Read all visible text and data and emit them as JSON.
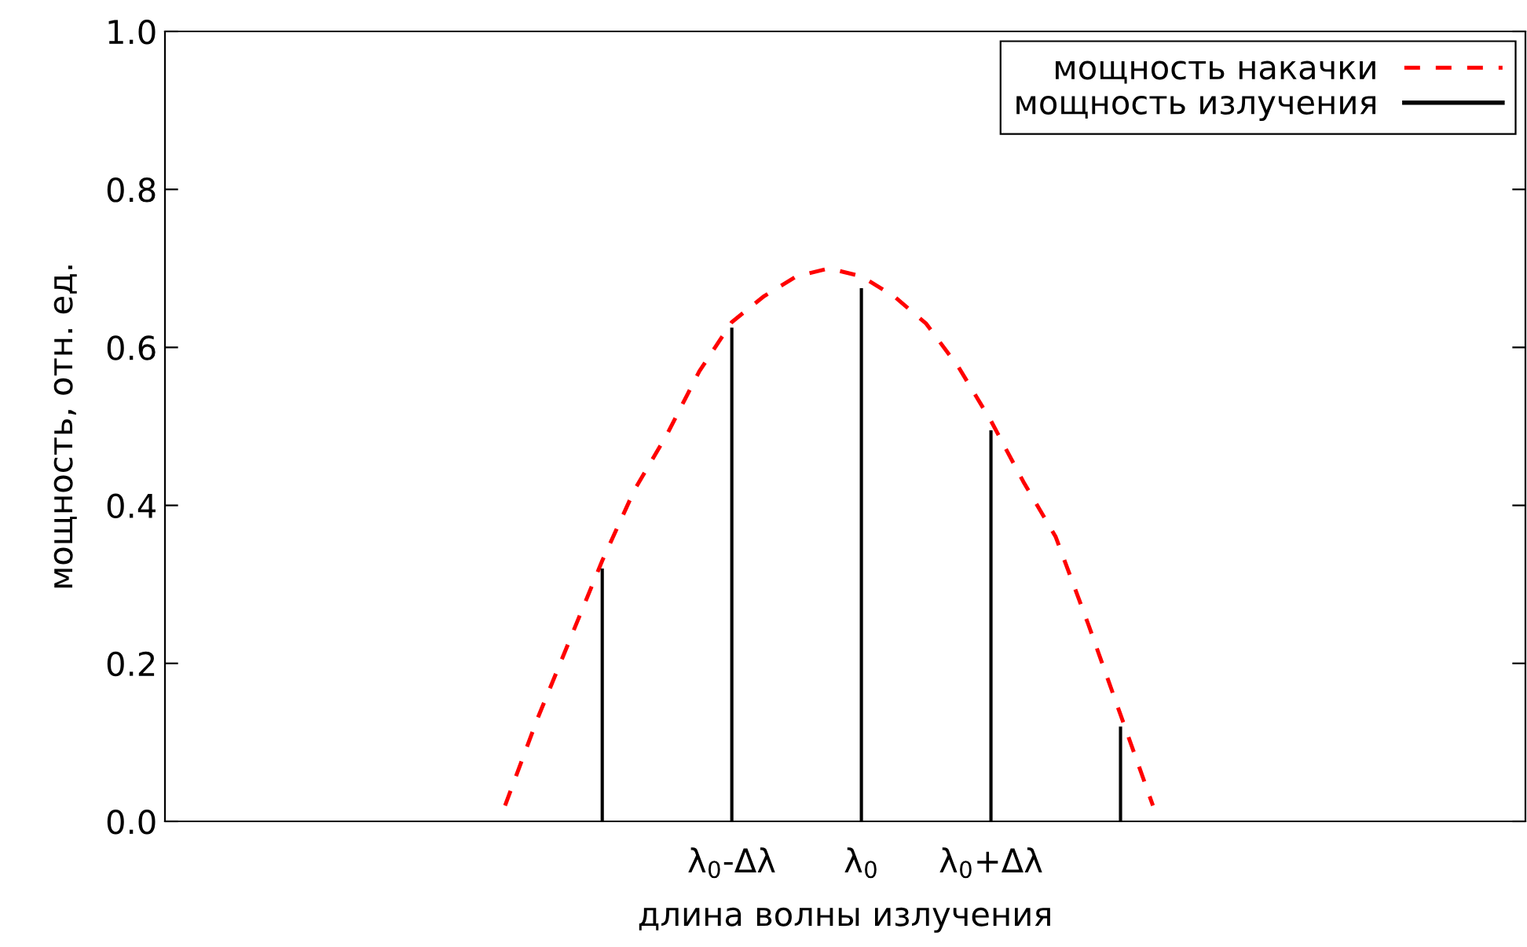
{
  "chart_data": {
    "type": "bar",
    "xlabel": "длина волны излучения",
    "ylabel": "мощность, отн. ед.",
    "categories": [
      null,
      null,
      null,
      null,
      null,
      null,
      null,
      null,
      null,
      null,
      null,
      null,
      null,
      null,
      null,
      null,
      null,
      "λ$_{0}$-Δλ",
      null,
      null,
      null,
      "λ$_{0}$",
      null,
      null,
      null,
      "λ$_{0}$+Δλ",
      null,
      null,
      null,
      null,
      null,
      null,
      null,
      null,
      null,
      null,
      null,
      null,
      null,
      null,
      null,
      null
    ],
    "ylim": [
      0,
      1.0
    ],
    "yticks": [
      {
        "value": 0,
        "label": "0.0"
      },
      0.2,
      0.4,
      0.6,
      0.8,
      {
        "value": 1.0,
        "label": "1.0"
      }
    ],
    "grid": false,
    "legend": "top right",
    "series": [
      {
        "name": "мощность накачки",
        "type": "line",
        "line_style": "dashed",
        "color": "#ff0000",
        "values": [
          null,
          null,
          null,
          null,
          null,
          null,
          null,
          null,
          null,
          null,
          0.02,
          0.13,
          0.23,
          0.33,
          0.42,
          0.49,
          0.57,
          0.632,
          0.665,
          0.69,
          0.7,
          0.69,
          0.665,
          0.63,
          0.575,
          0.507,
          0.43,
          0.36,
          0.25,
          0.135,
          0.02,
          null,
          null,
          null,
          null,
          null,
          null,
          null,
          null,
          null,
          null,
          null
        ]
      },
      {
        "name": "мощность излучения",
        "color": "#000000",
        "values": [
          null,
          null,
          null,
          null,
          null,
          null,
          null,
          null,
          null,
          null,
          null,
          null,
          null,
          0.32,
          null,
          null,
          null,
          0.625,
          null,
          null,
          null,
          0.675,
          null,
          null,
          null,
          0.495,
          null,
          null,
          null,
          0.12,
          null,
          null,
          null,
          null,
          null,
          null,
          null,
          null,
          null,
          null,
          null,
          null
        ]
      }
    ]
  }
}
